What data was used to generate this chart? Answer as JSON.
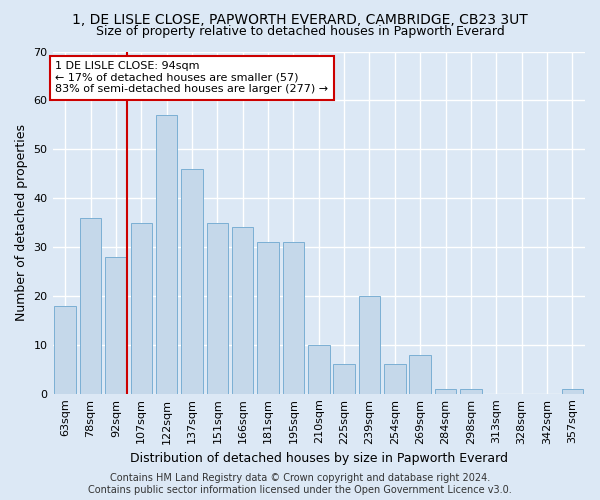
{
  "title": "1, DE LISLE CLOSE, PAPWORTH EVERARD, CAMBRIDGE, CB23 3UT",
  "subtitle": "Size of property relative to detached houses in Papworth Everard",
  "xlabel": "Distribution of detached houses by size in Papworth Everard",
  "ylabel": "Number of detached properties",
  "categories": [
    "63sqm",
    "78sqm",
    "92sqm",
    "107sqm",
    "122sqm",
    "137sqm",
    "151sqm",
    "166sqm",
    "181sqm",
    "195sqm",
    "210sqm",
    "225sqm",
    "239sqm",
    "254sqm",
    "269sqm",
    "284sqm",
    "298sqm",
    "313sqm",
    "328sqm",
    "342sqm",
    "357sqm"
  ],
  "values": [
    18,
    36,
    28,
    35,
    57,
    46,
    35,
    34,
    31,
    31,
    10,
    6,
    20,
    6,
    8,
    1,
    1,
    0,
    0,
    0,
    1
  ],
  "bar_color": "#c5d8ea",
  "bar_edge_color": "#7bafd4",
  "background_color": "#dce8f5",
  "grid_color": "#ffffff",
  "ylim": [
    0,
    70
  ],
  "yticks": [
    0,
    10,
    20,
    30,
    40,
    50,
    60,
    70
  ],
  "vline_index": 2,
  "annotation_line1": "1 DE LISLE CLOSE: 94sqm",
  "annotation_line2": "← 17% of detached houses are smaller (57)",
  "annotation_line3": "83% of semi-detached houses are larger (277) →",
  "annotation_box_color": "#ffffff",
  "annotation_box_edge": "#cc0000",
  "vline_color": "#cc0000",
  "footer": "Contains HM Land Registry data © Crown copyright and database right 2024.\nContains public sector information licensed under the Open Government Licence v3.0.",
  "title_fontsize": 10,
  "subtitle_fontsize": 9,
  "xlabel_fontsize": 9,
  "ylabel_fontsize": 9,
  "tick_fontsize": 8,
  "annotation_fontsize": 8,
  "footer_fontsize": 7
}
